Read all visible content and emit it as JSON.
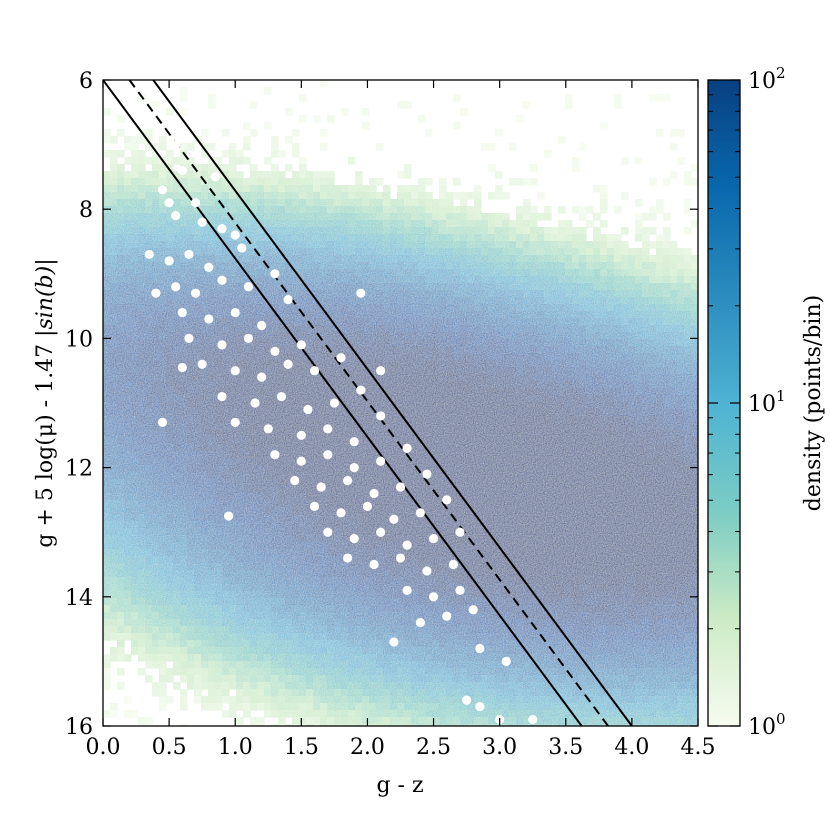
{
  "chart_data": {
    "type": "scatter",
    "description_free": true,
    "xlabel": "g - z",
    "ylabel": "g + 5 log(μ) - 1.47 |sin(b)|",
    "xlim": [
      0.0,
      4.5
    ],
    "ylim": [
      16,
      6
    ],
    "y_inverted": true,
    "x_ticks": [
      "0.0",
      "0.5",
      "1.0",
      "1.5",
      "2.0",
      "2.5",
      "3.0",
      "3.5",
      "4.0",
      "4.5"
    ],
    "x_tick_values": [
      0.0,
      0.5,
      1.0,
      1.5,
      2.0,
      2.5,
      3.0,
      3.5,
      4.0,
      4.5
    ],
    "y_ticks": [
      "6",
      "8",
      "10",
      "12",
      "14",
      "16"
    ],
    "y_tick_values": [
      6,
      8,
      10,
      12,
      14,
      16
    ],
    "colorbar": {
      "label": "density (points/bin)",
      "scale": "log",
      "ticks": [
        {
          "base": "10",
          "exp": "0",
          "value": 1
        },
        {
          "base": "10",
          "exp": "1",
          "value": 10
        },
        {
          "base": "10",
          "exp": "2",
          "value": 100
        }
      ],
      "colors": [
        "#f7fcf0",
        "#ccebc5",
        "#7bccc4",
        "#4eb3d3",
        "#2b8cbe",
        "#0868ac",
        "#084081"
      ]
    },
    "density_background": {
      "description": "2D histogram density of background points",
      "components": [
        {
          "x": 3.3,
          "y": 12.6,
          "weight": 1.0
        },
        {
          "x": 1.6,
          "y": 10.8,
          "weight": 0.55
        }
      ]
    },
    "lines": [
      {
        "style": "solid",
        "x": [
          0.0,
          3.62
        ],
        "y": [
          6,
          16
        ]
      },
      {
        "style": "dashed",
        "x": [
          0.2,
          3.82
        ],
        "y": [
          6,
          16
        ]
      },
      {
        "style": "solid",
        "x": [
          0.38,
          4.0
        ],
        "y": [
          6,
          16
        ]
      }
    ],
    "scatter_points": {
      "color": "#ffffff",
      "sample": [
        [
          0.55,
          7.0
        ],
        [
          0.6,
          7.4
        ],
        [
          0.45,
          7.7
        ],
        [
          0.5,
          7.9
        ],
        [
          0.7,
          7.9
        ],
        [
          0.85,
          7.5
        ],
        [
          0.55,
          8.1
        ],
        [
          0.75,
          8.2
        ],
        [
          0.9,
          8.3
        ],
        [
          1.0,
          8.4
        ],
        [
          0.35,
          8.7
        ],
        [
          0.5,
          8.8
        ],
        [
          0.65,
          8.7
        ],
        [
          0.8,
          8.9
        ],
        [
          1.05,
          8.6
        ],
        [
          0.55,
          9.2
        ],
        [
          0.7,
          9.3
        ],
        [
          0.9,
          9.1
        ],
        [
          1.1,
          9.2
        ],
        [
          1.3,
          9.0
        ],
        [
          0.6,
          9.6
        ],
        [
          0.8,
          9.7
        ],
        [
          1.0,
          9.6
        ],
        [
          1.2,
          9.8
        ],
        [
          1.4,
          9.4
        ],
        [
          0.65,
          10.0
        ],
        [
          0.9,
          10.1
        ],
        [
          1.1,
          10.0
        ],
        [
          1.3,
          10.2
        ],
        [
          1.5,
          10.1
        ],
        [
          0.75,
          10.4
        ],
        [
          1.0,
          10.5
        ],
        [
          1.2,
          10.6
        ],
        [
          1.4,
          10.4
        ],
        [
          1.6,
          10.5
        ],
        [
          1.8,
          10.3
        ],
        [
          0.9,
          10.9
        ],
        [
          1.15,
          11.0
        ],
        [
          1.35,
          10.9
        ],
        [
          1.55,
          11.1
        ],
        [
          1.75,
          11.0
        ],
        [
          1.95,
          10.8
        ],
        [
          1.0,
          11.3
        ],
        [
          1.25,
          11.4
        ],
        [
          1.5,
          11.5
        ],
        [
          1.7,
          11.4
        ],
        [
          1.9,
          11.6
        ],
        [
          2.1,
          11.2
        ],
        [
          1.3,
          11.8
        ],
        [
          1.5,
          11.9
        ],
        [
          1.7,
          11.8
        ],
        [
          1.9,
          12.0
        ],
        [
          2.1,
          11.9
        ],
        [
          2.3,
          11.7
        ],
        [
          1.45,
          12.2
        ],
        [
          1.65,
          12.3
        ],
        [
          1.85,
          12.2
        ],
        [
          2.05,
          12.4
        ],
        [
          2.25,
          12.3
        ],
        [
          2.45,
          12.1
        ],
        [
          1.6,
          12.6
        ],
        [
          1.8,
          12.7
        ],
        [
          2.0,
          12.6
        ],
        [
          2.2,
          12.8
        ],
        [
          2.4,
          12.7
        ],
        [
          2.6,
          12.5
        ],
        [
          1.7,
          13.0
        ],
        [
          1.9,
          13.1
        ],
        [
          2.1,
          13.0
        ],
        [
          2.3,
          13.2
        ],
        [
          2.5,
          13.1
        ],
        [
          2.7,
          13.0
        ],
        [
          1.85,
          13.4
        ],
        [
          2.05,
          13.5
        ],
        [
          2.25,
          13.4
        ],
        [
          2.45,
          13.6
        ],
        [
          2.65,
          13.5
        ],
        [
          2.3,
          13.9
        ],
        [
          2.5,
          14.0
        ],
        [
          2.7,
          13.9
        ],
        [
          2.4,
          14.4
        ],
        [
          2.6,
          14.3
        ],
        [
          2.8,
          14.2
        ],
        [
          2.2,
          14.7
        ],
        [
          2.85,
          14.8
        ],
        [
          3.05,
          15.0
        ],
        [
          2.75,
          15.6
        ],
        [
          2.85,
          15.7
        ],
        [
          3.0,
          15.9
        ],
        [
          3.25,
          15.9
        ],
        [
          0.95,
          12.75
        ],
        [
          0.45,
          11.3
        ],
        [
          0.6,
          10.45
        ],
        [
          0.4,
          9.3
        ],
        [
          1.95,
          9.3
        ],
        [
          2.1,
          10.5
        ]
      ]
    },
    "grid": false,
    "legend": "none"
  }
}
